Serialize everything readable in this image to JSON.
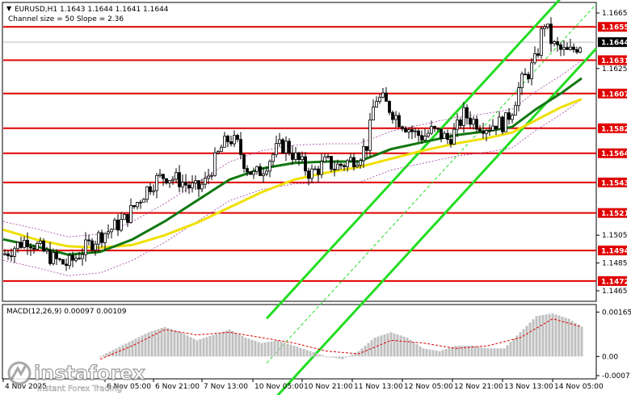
{
  "header": {
    "symbol_line": "EURUSD,H1  1.1643 1.1644 1.1641 1.1644",
    "channel_line": "Channel size = 50 Slope = 2.36",
    "macd_line": "MACD(12,26,9) 0.00097 0.00109"
  },
  "watermark": {
    "brand": "instaforex",
    "tagline": "Instant Forex Trading"
  },
  "colors": {
    "background": "#ffffff",
    "candle": "#000000",
    "level_line": "#e00000",
    "level_label_bg": "#e00000",
    "ma_green": "#117711",
    "ma_yellow": "#f0e000",
    "channel_green": "#22dd22",
    "bands": "#a040a0",
    "macd_hist": "#c0c0c0",
    "macd_signal": "#e00000",
    "current_price_bg": "#000000"
  },
  "chart_data": {
    "type": "candlestick",
    "title": "EURUSD,H1",
    "ylim": [
      1.1458,
      1.1672
    ],
    "price_ticks": [
      "1.1665",
      "1.1625",
      "1.1505",
      "1.1485",
      "1.1465"
    ],
    "levels": [
      "1.1655",
      "1.1631",
      "1.1607",
      "1.1582",
      "1.1564",
      "1.1543",
      "1.1521",
      "1.1494",
      "1.1472"
    ],
    "current_price": "1.1644",
    "x_labels": [
      "4 Nov 2025",
      "6 Nov 05:00",
      "6 Nov 21:00",
      "7 Nov 13:00",
      "10 Nov 05:00",
      "10 Nov 21:00",
      "11 Nov 13:00",
      "12 Nov 05:00",
      "12 Nov 21:00",
      "13 Nov 13:00",
      "14 Nov 05:00"
    ],
    "price_path": [
      [
        0,
        1.1491
      ],
      [
        8,
        1.1494
      ],
      [
        18,
        1.1498
      ],
      [
        30,
        1.1502
      ],
      [
        42,
        1.1497
      ],
      [
        52,
        1.1492
      ],
      [
        62,
        1.1488
      ],
      [
        72,
        1.1485
      ],
      [
        80,
        1.1484
      ],
      [
        90,
        1.1489
      ],
      [
        100,
        1.1495
      ],
      [
        110,
        1.15
      ],
      [
        120,
        1.1505
      ],
      [
        130,
        1.1508
      ],
      [
        140,
        1.1512
      ],
      [
        150,
        1.1516
      ],
      [
        160,
        1.1524
      ],
      [
        170,
        1.1532
      ],
      [
        180,
        1.154
      ],
      [
        190,
        1.1545
      ],
      [
        200,
        1.1548
      ],
      [
        210,
        1.1546
      ],
      [
        220,
        1.1544
      ],
      [
        230,
        1.154
      ],
      [
        240,
        1.1538
      ],
      [
        250,
        1.1543
      ],
      [
        260,
        1.1556
      ],
      [
        270,
        1.1568
      ],
      [
        280,
        1.1575
      ],
      [
        290,
        1.157
      ],
      [
        300,
        1.1555
      ],
      [
        310,
        1.1548
      ],
      [
        320,
        1.1552
      ],
      [
        330,
        1.156
      ],
      [
        340,
        1.1568
      ],
      [
        350,
        1.157
      ],
      [
        360,
        1.1562
      ],
      [
        370,
        1.1556
      ],
      [
        380,
        1.1549
      ],
      [
        390,
        1.1553
      ],
      [
        400,
        1.1558
      ],
      [
        410,
        1.1554
      ],
      [
        420,
        1.1556
      ],
      [
        430,
        1.1559
      ],
      [
        440,
        1.1562
      ],
      [
        450,
        1.157
      ],
      [
        455,
        1.1585
      ],
      [
        460,
        1.1604
      ],
      [
        470,
        1.1602
      ],
      [
        480,
        1.1595
      ],
      [
        490,
        1.1588
      ],
      [
        500,
        1.1583
      ],
      [
        510,
        1.1578
      ],
      [
        520,
        1.1576
      ],
      [
        530,
        1.158
      ],
      [
        540,
        1.1578
      ],
      [
        550,
        1.1574
      ],
      [
        560,
        1.158
      ],
      [
        570,
        1.1592
      ],
      [
        580,
        1.1588
      ],
      [
        590,
        1.1585
      ],
      [
        600,
        1.1583
      ],
      [
        610,
        1.1586
      ],
      [
        620,
        1.1585
      ],
      [
        630,
        1.1596
      ],
      [
        640,
        1.1614
      ],
      [
        650,
        1.1622
      ],
      [
        660,
        1.1632
      ],
      [
        665,
        1.1648
      ],
      [
        670,
        1.1658
      ],
      [
        675,
        1.165
      ],
      [
        680,
        1.1642
      ],
      [
        690,
        1.1638
      ],
      [
        700,
        1.1636
      ],
      [
        708,
        1.164
      ],
      [
        716,
        1.1644
      ]
    ],
    "ma_green": [
      [
        0,
        1.1502
      ],
      [
        40,
        1.1497
      ],
      [
        80,
        1.1491
      ],
      [
        120,
        1.1493
      ],
      [
        160,
        1.1502
      ],
      [
        200,
        1.1515
      ],
      [
        240,
        1.153
      ],
      [
        280,
        1.1545
      ],
      [
        320,
        1.1553
      ],
      [
        360,
        1.1557
      ],
      [
        400,
        1.1558
      ],
      [
        440,
        1.1558
      ],
      [
        480,
        1.1567
      ],
      [
        520,
        1.1572
      ],
      [
        560,
        1.1577
      ],
      [
        600,
        1.158
      ],
      [
        630,
        1.1583
      ],
      [
        660,
        1.1596
      ],
      [
        690,
        1.1607
      ],
      [
        716,
        1.1618
      ]
    ],
    "ma_yellow": [
      [
        0,
        1.1509
      ],
      [
        40,
        1.1502
      ],
      [
        80,
        1.1497
      ],
      [
        120,
        1.1496
      ],
      [
        160,
        1.1498
      ],
      [
        200,
        1.1505
      ],
      [
        240,
        1.1514
      ],
      [
        280,
        1.1525
      ],
      [
        320,
        1.1536
      ],
      [
        360,
        1.1545
      ],
      [
        400,
        1.155
      ],
      [
        440,
        1.1554
      ],
      [
        480,
        1.156
      ],
      [
        520,
        1.1566
      ],
      [
        560,
        1.1571
      ],
      [
        600,
        1.1575
      ],
      [
        630,
        1.1579
      ],
      [
        660,
        1.1588
      ],
      [
        690,
        1.1597
      ],
      [
        716,
        1.1603
      ]
    ],
    "macd_ylim": [
      -0.0008,
      0.0019
    ],
    "macd_ticks": [
      "0.00165",
      "0.00",
      "-0.00071"
    ],
    "macd_hist": [
      [
        120,
        0.0
      ],
      [
        140,
        0.0003
      ],
      [
        160,
        0.0006
      ],
      [
        180,
        0.0009
      ],
      [
        200,
        0.0011
      ],
      [
        220,
        0.0009
      ],
      [
        240,
        0.0006
      ],
      [
        260,
        0.0008
      ],
      [
        280,
        0.001
      ],
      [
        300,
        0.0007
      ],
      [
        320,
        0.0005
      ],
      [
        340,
        0.0006
      ],
      [
        360,
        0.0004
      ],
      [
        380,
        0.0002
      ],
      [
        400,
        0.0
      ],
      [
        420,
        -0.0001
      ],
      [
        440,
        0.0002
      ],
      [
        460,
        0.0007
      ],
      [
        480,
        0.0009
      ],
      [
        500,
        0.0007
      ],
      [
        520,
        0.0003
      ],
      [
        540,
        0.0002
      ],
      [
        560,
        0.0004
      ],
      [
        580,
        0.0004
      ],
      [
        600,
        0.0003
      ],
      [
        620,
        0.0003
      ],
      [
        640,
        0.0009
      ],
      [
        660,
        0.0015
      ],
      [
        680,
        0.0016
      ],
      [
        700,
        0.0014
      ],
      [
        716,
        0.0011
      ]
    ],
    "macd_signal": [
      [
        120,
        -0.0001
      ],
      [
        160,
        0.0004
      ],
      [
        200,
        0.001
      ],
      [
        240,
        0.0008
      ],
      [
        280,
        0.0009
      ],
      [
        320,
        0.0007
      ],
      [
        360,
        0.0005
      ],
      [
        400,
        0.0002
      ],
      [
        440,
        0.0001
      ],
      [
        480,
        0.0006
      ],
      [
        520,
        0.0005
      ],
      [
        560,
        0.0003
      ],
      [
        600,
        0.0004
      ],
      [
        640,
        0.0007
      ],
      [
        680,
        0.0014
      ],
      [
        716,
        0.0011
      ]
    ]
  }
}
